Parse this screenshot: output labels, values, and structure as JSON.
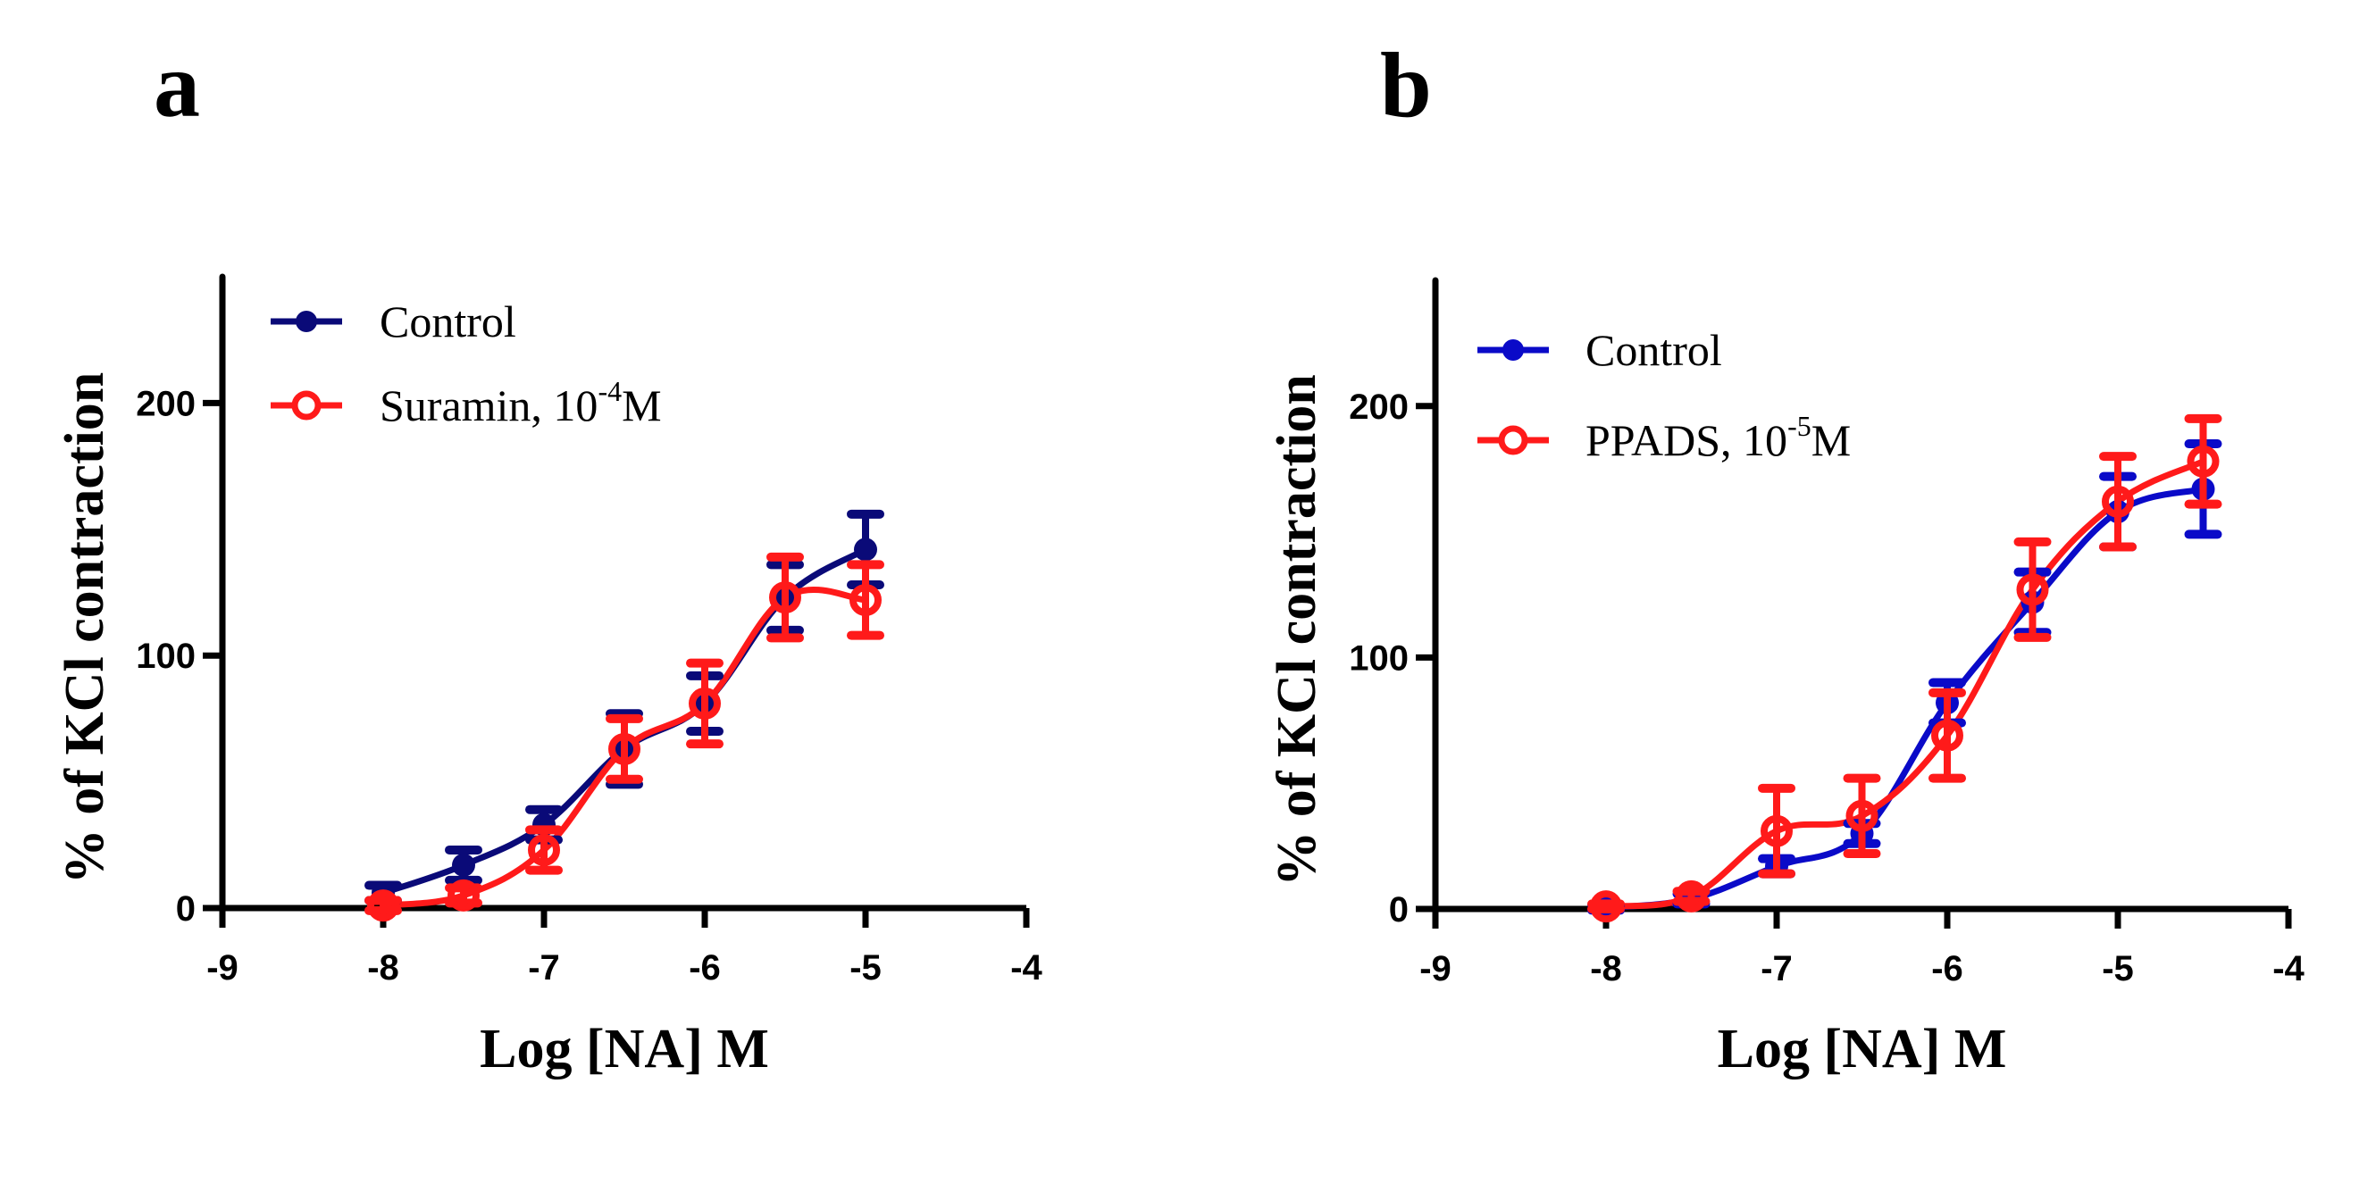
{
  "chart_data": [
    {
      "type": "line",
      "panel_label": "a",
      "title": "",
      "xlabel": "Log [NA] M",
      "ylabel": "% of KCl contraction",
      "xlim": [
        -9,
        -4
      ],
      "ylim": [
        0,
        250
      ],
      "xticks": [
        -9,
        -8,
        -7,
        -6,
        -5,
        -4
      ],
      "xtick_labels": [
        "-9",
        "-8",
        "-7",
        "-6",
        "-5",
        "-4"
      ],
      "yticks": [
        0,
        100,
        200
      ],
      "ytick_labels": [
        "0",
        "100",
        "200"
      ],
      "grid": false,
      "legend_position": "top-left",
      "series": [
        {
          "name": "Control",
          "legend_label": "Control",
          "legend_sup": "",
          "legend_suffix": "",
          "color": "#0a0a78",
          "marker": "filled-circle",
          "x": [
            -8,
            -7.5,
            -7,
            -6.5,
            -6,
            -5.5,
            -5
          ],
          "y": [
            6,
            17,
            33,
            63,
            81,
            123,
            142
          ],
          "error": [
            3,
            6,
            6,
            14,
            11,
            13,
            14
          ]
        },
        {
          "name": "Suramin, 10^-4 M",
          "legend_label": "Suramin, 10",
          "legend_sup": "-4",
          "legend_suffix": "M",
          "color": "#ff1a1a",
          "marker": "open-circle",
          "x": [
            -8,
            -7.5,
            -7,
            -6.5,
            -6,
            -5.5,
            -5
          ],
          "y": [
            1,
            5,
            23,
            63,
            81,
            123,
            122
          ],
          "error": [
            2,
            3,
            8,
            12,
            16,
            16,
            14
          ]
        }
      ]
    },
    {
      "type": "line",
      "panel_label": "b",
      "title": "",
      "xlabel": "Log [NA] M",
      "ylabel": "% of KCl contraction",
      "xlim": [
        -9,
        -4
      ],
      "ylim": [
        0,
        250
      ],
      "xticks": [
        -9,
        -8,
        -7,
        -6,
        -5,
        -4
      ],
      "xtick_labels": [
        "-9",
        "-8",
        "-7",
        "-6",
        "-5",
        "-4"
      ],
      "yticks": [
        0,
        100,
        200
      ],
      "ytick_labels": [
        "0",
        "100",
        "200"
      ],
      "grid": false,
      "legend_position": "top-left",
      "series": [
        {
          "name": "Control",
          "legend_label": "Control",
          "legend_sup": "",
          "legend_suffix": "",
          "color": "#0a0ac8",
          "marker": "filled-circle",
          "x": [
            -8,
            -7.5,
            -7,
            -6.5,
            -6,
            -5.5,
            -5,
            -4.5
          ],
          "y": [
            0.5,
            4,
            17,
            30,
            82,
            122,
            158,
            167
          ],
          "error": [
            1,
            2,
            3,
            4,
            8,
            12,
            14,
            18
          ]
        },
        {
          "name": "PPADS, 10^-5 M",
          "legend_label": "PPADS, 10",
          "legend_sup": "-5",
          "legend_suffix": "M",
          "color": "#ff1a1a",
          "marker": "open-circle",
          "x": [
            -8,
            -7.5,
            -7,
            -6.5,
            -6,
            -5.5,
            -5,
            -4.5
          ],
          "y": [
            1,
            5,
            31,
            37,
            69,
            127,
            162,
            178
          ],
          "error": [
            1,
            2,
            17,
            15,
            17,
            19,
            18,
            17
          ]
        }
      ]
    }
  ]
}
